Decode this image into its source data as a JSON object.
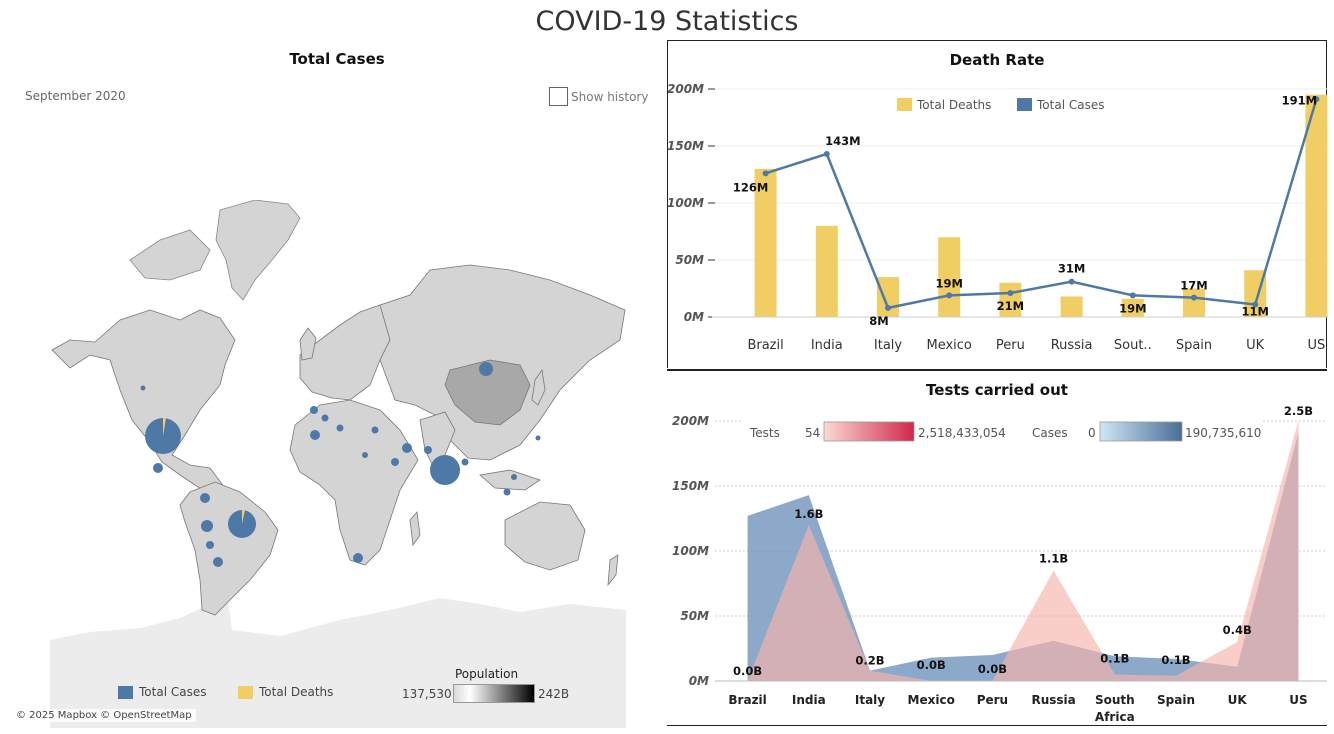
{
  "dashboard": {
    "title": "COVID-19 Statistics"
  },
  "map": {
    "title": "Total Cases",
    "date_label": "September 2020",
    "show_history_label": "Show history",
    "attribution": "© 2025 Mapbox © OpenStreetMap",
    "legend": {
      "total_cases": "Total Cases",
      "total_deaths": "Total Deaths"
    },
    "population_legend": {
      "title": "Population",
      "min": "137,530",
      "max": "242B"
    },
    "colors": {
      "cases": "#4e79a7",
      "deaths": "#f1ce63",
      "land": "#d4d4d4",
      "antarctica": "#ececec"
    }
  },
  "death_chart": {
    "title": "Death Rate",
    "legend": {
      "deaths": "Total Deaths",
      "cases": "Total Cases"
    },
    "colors": {
      "bars": "#f1ce63",
      "line": "#4e79a7"
    }
  },
  "tests_chart": {
    "title": "Tests carried out",
    "legend": {
      "tests_label": "Tests",
      "tests_min": "54",
      "tests_max": "2,518,433,054",
      "cases_label": "Cases",
      "cases_min": "0",
      "cases_max": "190,735,610"
    },
    "colors": {
      "cases_area": "#6f93bc",
      "tests_area": "#f7b3ab"
    }
  },
  "chart_data": [
    {
      "type": "bar",
      "title": "Death Rate",
      "categories": [
        "Brazil",
        "India",
        "Italy",
        "Mexico",
        "Peru",
        "Russia",
        "Sout..",
        "Spain",
        "UK",
        "US"
      ],
      "ylim": [
        0,
        200000000
      ],
      "yticks": [
        "0M",
        "50M",
        "100M",
        "150M",
        "200M"
      ],
      "legend_position": "top",
      "series": [
        {
          "name": "Total Deaths",
          "type": "bar",
          "values": [
            130000000,
            80000000,
            35000000,
            70000000,
            30000000,
            18000000,
            16000000,
            25000000,
            41000000,
            195000000
          ]
        },
        {
          "name": "Total Cases",
          "type": "line",
          "values": [
            126000000,
            143000000,
            8000000,
            19000000,
            21000000,
            31000000,
            19000000,
            17000000,
            11000000,
            191000000
          ],
          "labels": [
            "126M",
            "143M",
            "8M",
            "19M",
            "21M",
            "31M",
            "19M",
            "17M",
            "11M",
            "191M"
          ]
        }
      ]
    },
    {
      "type": "area",
      "title": "Tests carried out",
      "categories": [
        "Brazil",
        "India",
        "Italy",
        "Mexico",
        "Peru",
        "Russia",
        "South Africa",
        "Spain",
        "UK",
        "US"
      ],
      "ylim": [
        0,
        200000000
      ],
      "yticks": [
        "0M",
        "50M",
        "100M",
        "150M",
        "200M"
      ],
      "legend_position": "top",
      "series": [
        {
          "name": "Cases",
          "values": [
            127000000,
            143000000,
            8000000,
            18000000,
            20000000,
            31000000,
            19000000,
            17000000,
            11000000,
            191000000
          ]
        },
        {
          "name": "Tests",
          "values": [
            0,
            120000000,
            8000000,
            0,
            0,
            85000000,
            5000000,
            4000000,
            30000000,
            200000000
          ],
          "labels": [
            "0.0B",
            "1.6B",
            "0.2B",
            "0.0B",
            "0.0B",
            "1.1B",
            "0.1B",
            "0.1B",
            "0.4B",
            "2.5B"
          ]
        }
      ]
    }
  ]
}
